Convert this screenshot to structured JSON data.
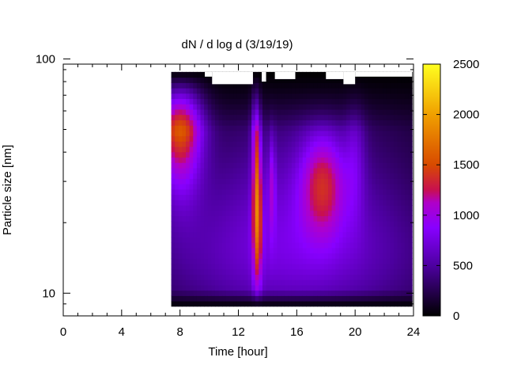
{
  "chart_data": {
    "type": "heatmap",
    "title": "dN / d log d (3/19/19)",
    "xlabel": "Time [hour]",
    "ylabel": "Particle size [nm]",
    "xlim": [
      0,
      24
    ],
    "ylim": [
      8,
      95
    ],
    "yscale": "log",
    "x_ticks": [
      0,
      4,
      8,
      12,
      16,
      20,
      24
    ],
    "y_ticks": [
      10,
      100
    ],
    "colorbar": {
      "range": [
        0,
        2500
      ],
      "ticks": [
        0,
        500,
        1000,
        1500,
        2000,
        2500
      ],
      "palette": "black-purple-red-orange-yellow"
    },
    "data_extent": {
      "x": [
        7.4,
        23.9
      ],
      "y": [
        8.8,
        88
      ]
    },
    "background": 120,
    "features": [
      {
        "x": 8.0,
        "y": 70,
        "peak": 1650,
        "sx": 1.1,
        "sy_log": 0.26
      },
      {
        "x": 13.3,
        "y": 22,
        "peak": 1050,
        "sx": 0.22,
        "sy_log": 0.22
      },
      {
        "x": 13.2,
        "y": 70,
        "peak": 650,
        "sx": 0.22,
        "sy_log": 0.3
      },
      {
        "x": 14.3,
        "y": 30,
        "peak": 450,
        "sx": 0.18,
        "sy_log": 0.15
      },
      {
        "x": 17.8,
        "y": 30,
        "peak": 780,
        "sx": 1.1,
        "sy_log": 0.16
      },
      {
        "x": 20.0,
        "y": 40,
        "peak": 300,
        "sx": 0.5,
        "sy_log": 0.2
      },
      {
        "x": 16.0,
        "y": 25,
        "peak": 450,
        "sx": 5.5,
        "sy_log": 0.3
      },
      {
        "x": 15.5,
        "y": 13,
        "peak": 330,
        "sx": 8.0,
        "sy_log": 0.2
      }
    ]
  }
}
